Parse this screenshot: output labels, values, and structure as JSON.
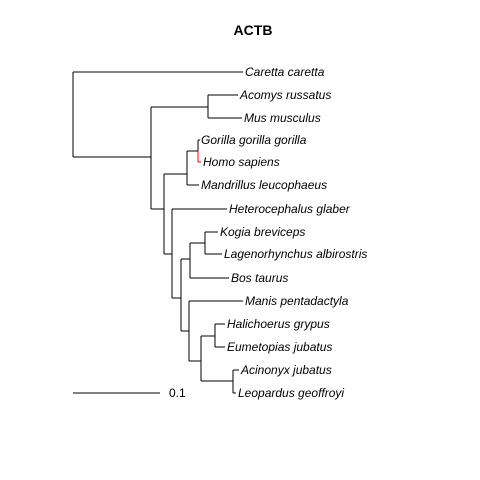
{
  "title": "ACTB",
  "taxa": [
    "Caretta caretta",
    "Acomys russatus",
    "Mus musculus",
    "Gorilla gorilla gorilla",
    "Homo sapiens",
    "Mandrillus leucophaeus",
    "Heterocephalus glaber",
    "Kogia breviceps",
    "Lagenorhynchus albirostris",
    "Bos taurus",
    "Manis pentadactyla",
    "Halichoerus grypus",
    "Eumetopias jubatus",
    "Acinonyx jubatus",
    "Leopardus geoffroyi"
  ],
  "scale_bar": {
    "label": "0.1",
    "length": 0.1
  },
  "colors": {
    "line": "#000000",
    "highlight": "#ff0000",
    "text": "#000000"
  }
}
